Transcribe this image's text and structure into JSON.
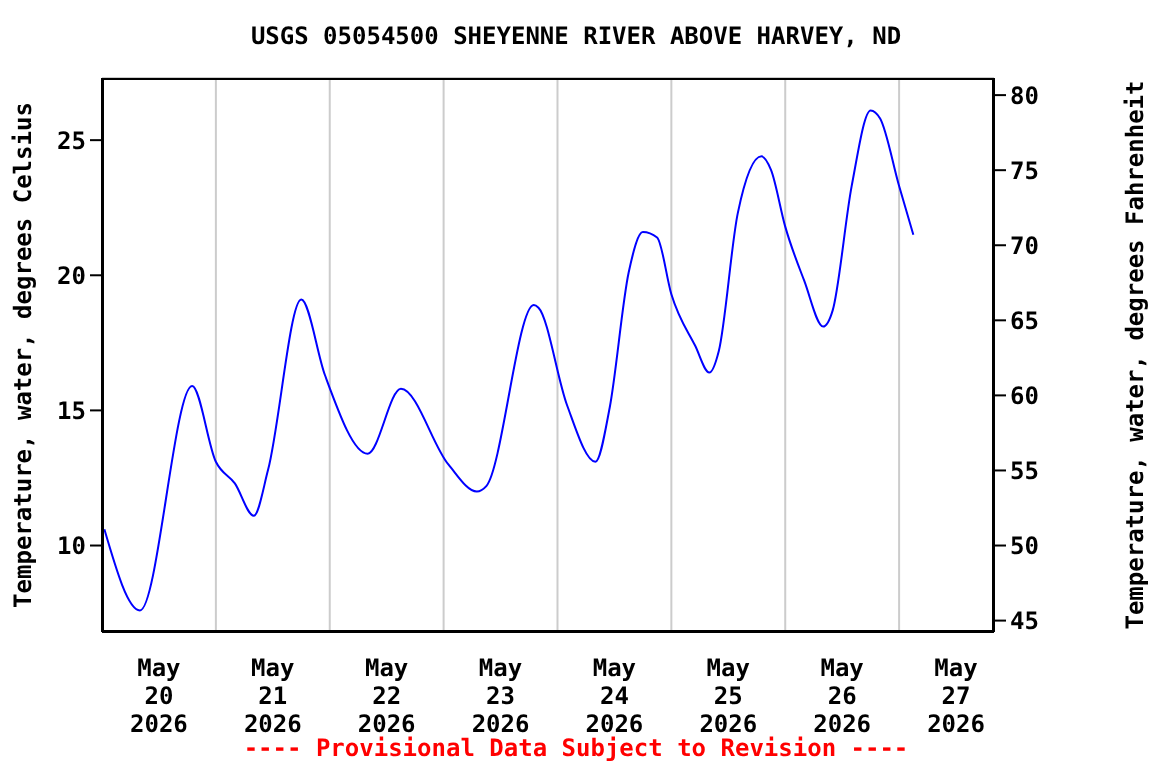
{
  "chart_data": {
    "type": "line",
    "title": "USGS 05054500 SHEYENNE RIVER ABOVE HARVEY, ND",
    "ylabel": "Temperature, water, degrees Celsius",
    "y2label": "Temperature, water, degrees Fahrenheit",
    "annotations": [
      "---- Provisional Data Subject to Revision ----"
    ],
    "x": [
      "2026-05-19T12:30",
      "2026-05-19T20:00",
      "2026-05-20T07:00",
      "2026-05-20T12:00",
      "2026-05-20T16:00",
      "2026-05-20T20:00",
      "2026-05-20T23:00",
      "2026-05-21T06:00",
      "2026-05-21T11:00",
      "2026-05-21T20:00",
      "2026-05-22T03:00",
      "2026-05-22T13:00",
      "2026-05-22T19:00",
      "2026-05-22T21:00",
      "2026-05-23T07:00",
      "2026-05-23T08:00",
      "2026-05-23T14:00",
      "2026-05-23T20:00",
      "2026-05-23T23:00",
      "2026-05-24T03:00",
      "2026-05-24T06:00",
      "2026-05-24T09:00",
      "2026-05-24T12:00",
      "2026-05-24T17:00",
      "2026-05-24T20:00",
      "2026-05-24T22:00",
      "2026-05-25T02:00",
      "2026-05-25T07:00",
      "2026-05-25T09:00",
      "2026-05-25T12:00",
      "2026-05-25T16:00",
      "2026-05-25T20:00",
      "2026-05-25T22:00",
      "2026-05-26T02:00",
      "2026-05-26T06:00",
      "2026-05-26T08:00",
      "2026-05-26T12:00",
      "2026-05-26T15:00"
    ],
    "series": [
      {
        "color": "#0000ff",
        "values": [
          10.6,
          7.6,
          15.9,
          13.1,
          12.3,
          11.1,
          12.8,
          19.1,
          16.3,
          13.4,
          15.8,
          13.0,
          12.0,
          12.2,
          18.9,
          18.8,
          15.2,
          13.1,
          15.1,
          20.1,
          21.6,
          21.4,
          19.3,
          17.4,
          16.4,
          17.2,
          22.3,
          24.4,
          23.9,
          21.8,
          19.8,
          18.1,
          18.7,
          23.3,
          26.1,
          25.8,
          23.3,
          21.5
        ]
      }
    ],
    "xlim": [
      "2026-05-19T12:00",
      "2026-05-27T08:00"
    ],
    "xticks": [
      {
        "value": "2026-05-20",
        "label": "May 20 2026"
      },
      {
        "value": "2026-05-20T12:00",
        "label": null
      },
      {
        "value": "2026-05-21",
        "label": "May 21 2026"
      },
      {
        "value": "2026-05-21T12:00",
        "label": null
      },
      {
        "value": "2026-05-22",
        "label": "May 22 2026"
      },
      {
        "value": "2026-05-22T12:00",
        "label": null
      },
      {
        "value": "2026-05-23",
        "label": "May 23 2026"
      },
      {
        "value": "2026-05-23T12:00",
        "label": null
      },
      {
        "value": "2026-05-24",
        "label": "May 24 2026"
      },
      {
        "value": "2026-05-24T12:00",
        "label": null
      },
      {
        "value": "2026-05-25",
        "label": "May 25 2026"
      },
      {
        "value": "2026-05-25T12:00",
        "label": null
      },
      {
        "value": "2026-05-26",
        "label": "May 26 2026"
      },
      {
        "value": "2026-05-26T12:00",
        "label": null
      },
      {
        "value": "2026-05-27",
        "label": "May 27 2026"
      }
    ],
    "ylim": [
      6.8,
      27.3
    ],
    "yticks": [
      10,
      15,
      20,
      25
    ],
    "y2lim": [
      44.24,
      81.14
    ],
    "y2ticks": [
      45,
      50,
      55,
      60,
      65,
      70,
      75,
      80
    ],
    "grid": true,
    "legend": false,
    "marker": "none",
    "line_style": "solid"
  }
}
